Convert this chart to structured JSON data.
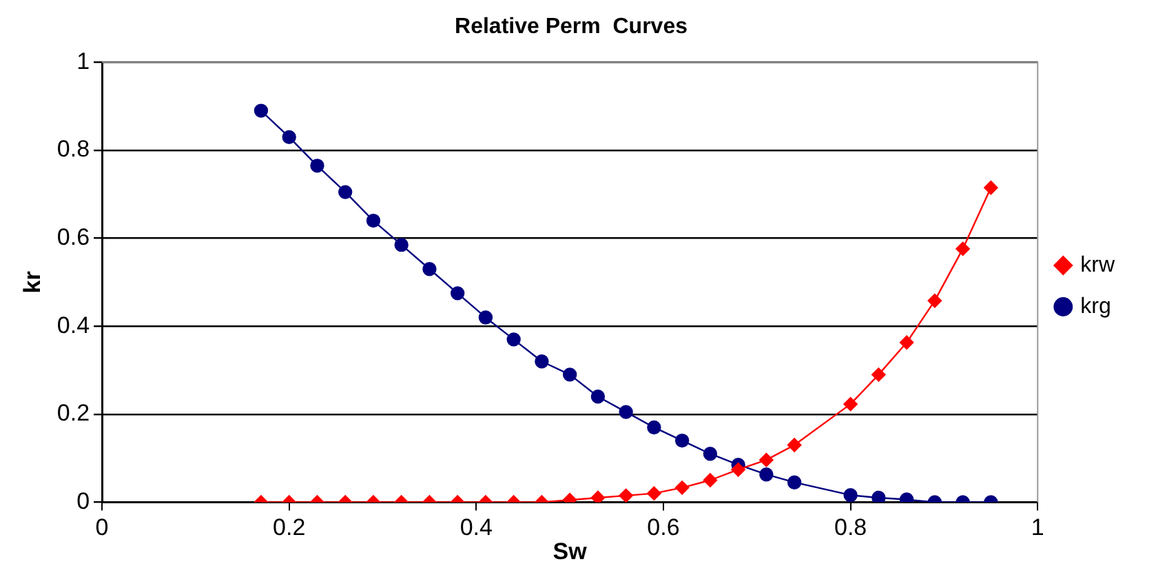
{
  "chart_data": {
    "type": "line",
    "title": "Relative Perm  Curves",
    "xlabel": "Sw",
    "ylabel": "kr",
    "x": [
      0.17,
      0.2,
      0.23,
      0.26,
      0.29,
      0.32,
      0.35,
      0.38,
      0.41,
      0.44,
      0.47,
      0.5,
      0.53,
      0.56,
      0.59,
      0.62,
      0.65,
      0.68,
      0.71,
      0.74,
      0.8,
      0.83,
      0.86,
      0.89,
      0.92,
      0.95
    ],
    "series": [
      {
        "name": "krg",
        "color": "#000080",
        "marker": "circle",
        "values": [
          0.89,
          0.83,
          0.765,
          0.705,
          0.64,
          0.585,
          0.53,
          0.475,
          0.42,
          0.37,
          0.32,
          0.29,
          0.24,
          0.205,
          0.17,
          0.14,
          0.11,
          0.085,
          0.063,
          0.045,
          0.016,
          0.01,
          0.006,
          0,
          0,
          0
        ]
      },
      {
        "name": "krw",
        "color": "#ff0000",
        "marker": "diamond",
        "values": [
          0,
          0,
          0,
          0,
          0,
          0,
          0,
          0,
          0,
          0,
          0,
          0.005,
          0.01,
          0.015,
          0.02,
          0.033,
          0.05,
          0.074,
          0.096,
          0.13,
          0.223,
          0.29,
          0.363,
          0.458,
          0.576,
          0.715
        ]
      }
    ],
    "xlim": [
      0,
      1
    ],
    "xticks": [
      0,
      0.2,
      0.4,
      0.6,
      0.8,
      1
    ],
    "ylim": [
      0,
      1
    ],
    "yticks": [
      0,
      0.2,
      0.4,
      0.6,
      0.8,
      1
    ],
    "grid": "y",
    "legend": "right",
    "line_style": "solid"
  }
}
